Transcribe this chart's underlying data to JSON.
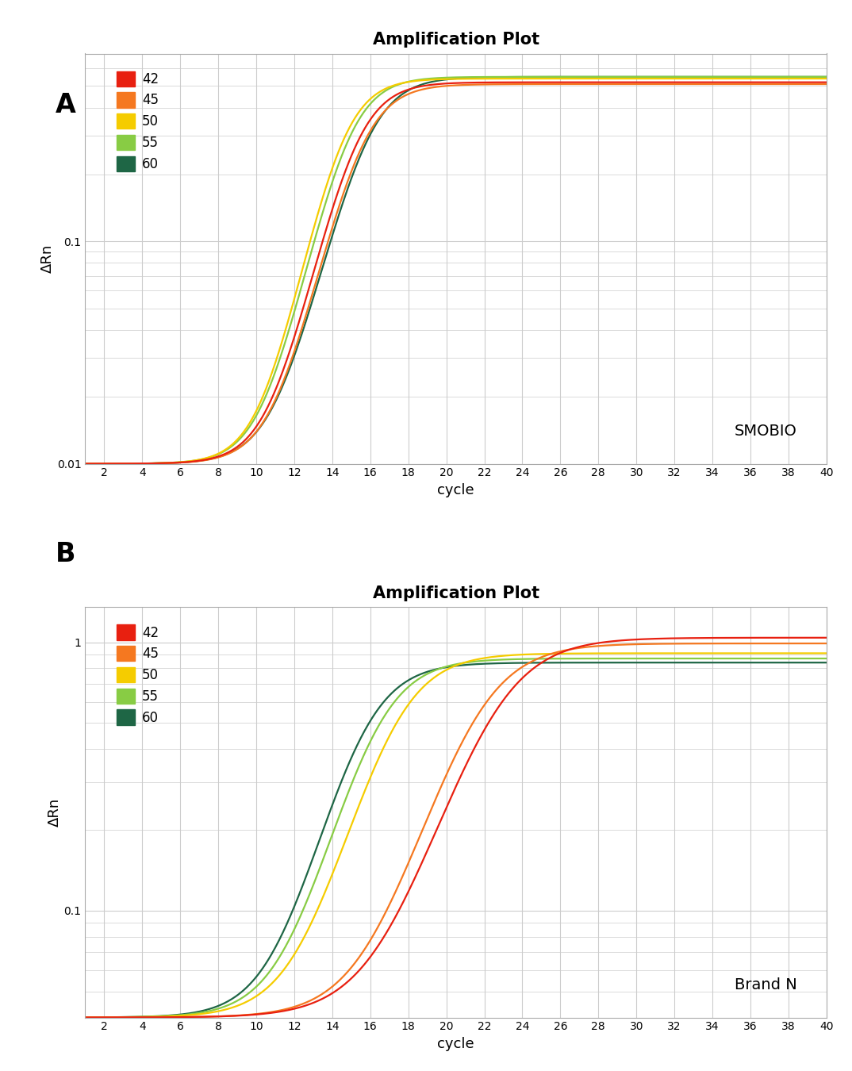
{
  "title": "Amplification Plot",
  "xlabel": "cycle",
  "ylabel": "ΔRn",
  "legend_labels": [
    "42",
    "45",
    "50",
    "55",
    "60"
  ],
  "colors": [
    "#e82010",
    "#f57820",
    "#f5cc00",
    "#88cc44",
    "#1e6645"
  ],
  "panel_A_label": "SMOBIO",
  "panel_B_label": "Brand N",
  "background_color": "#ffffff",
  "grid_color": "#cccccc",
  "xlim": [
    1,
    40
  ],
  "xticks": [
    2,
    4,
    6,
    8,
    10,
    12,
    14,
    16,
    18,
    20,
    22,
    24,
    26,
    28,
    30,
    32,
    34,
    36,
    38,
    40
  ],
  "panel_A": {
    "ylim": [
      0.01,
      0.7
    ],
    "yticks_major": [
      0.01,
      0.1
    ],
    "series": [
      {
        "label": "42",
        "midpoint": 15.2,
        "steepness": 0.9,
        "plateau": 0.52,
        "baseline": 0.01
      },
      {
        "label": "45",
        "midpoint": 15.5,
        "steepness": 0.88,
        "plateau": 0.51,
        "baseline": 0.01
      },
      {
        "label": "50",
        "midpoint": 14.5,
        "steepness": 0.95,
        "plateau": 0.54,
        "baseline": 0.01
      },
      {
        "label": "55",
        "midpoint": 14.8,
        "steepness": 0.92,
        "plateau": 0.55,
        "baseline": 0.01
      },
      {
        "label": "60",
        "midpoint": 15.8,
        "steepness": 0.85,
        "plateau": 0.55,
        "baseline": 0.01
      }
    ]
  },
  "panel_B": {
    "ylim": [
      0.04,
      1.35
    ],
    "yticks_major": [
      0.1,
      1.0
    ],
    "series": [
      {
        "label": "42",
        "midpoint": 22.5,
        "steepness": 0.55,
        "plateau": 1.04,
        "baseline": 0.04
      },
      {
        "label": "45",
        "midpoint": 21.5,
        "steepness": 0.58,
        "plateau": 0.99,
        "baseline": 0.04
      },
      {
        "label": "50",
        "midpoint": 17.2,
        "steepness": 0.65,
        "plateau": 0.91,
        "baseline": 0.04
      },
      {
        "label": "55",
        "midpoint": 16.2,
        "steepness": 0.68,
        "plateau": 0.87,
        "baseline": 0.04
      },
      {
        "label": "60",
        "midpoint": 15.5,
        "steepness": 0.7,
        "plateau": 0.84,
        "baseline": 0.04
      }
    ]
  }
}
